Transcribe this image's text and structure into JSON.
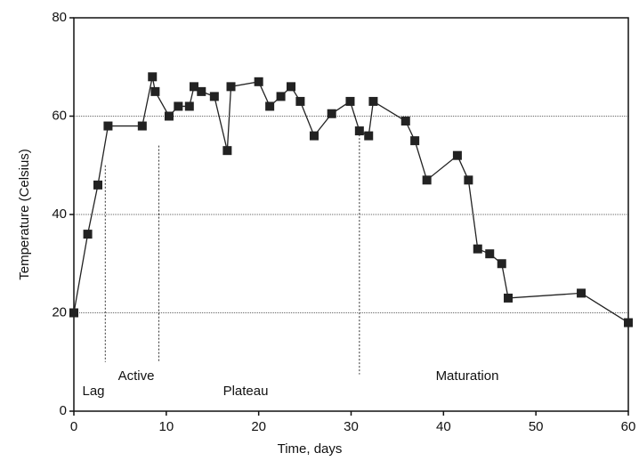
{
  "chart_data": {
    "type": "line",
    "x_label": "Time, days",
    "y_label": "Temperature (Celsius)",
    "x": [
      0,
      1.5,
      2.6,
      3.7,
      7.4,
      8.5,
      8.8,
      10.3,
      11.3,
      12.5,
      13,
      13.8,
      15.2,
      16.6,
      17,
      20,
      21.2,
      22.4,
      23.5,
      24.5,
      26,
      27.9,
      29.9,
      30.9,
      31.9,
      32.4,
      35.9,
      36.9,
      38.2,
      41.5,
      42.7,
      43.7,
      45,
      46.3,
      47,
      54.9,
      60
    ],
    "series": [
      {
        "color": "#222222",
        "values": [
          20,
          36,
          46,
          58,
          58,
          68,
          65,
          60,
          62,
          62,
          66,
          65,
          64,
          53,
          66,
          67,
          62,
          64,
          66,
          63,
          56,
          60.5,
          63,
          57,
          56,
          63,
          59,
          55,
          47,
          52,
          47,
          33,
          32,
          30,
          23,
          24,
          18
        ]
      }
    ],
    "xlim": [
      0,
      60
    ],
    "xticks": [
      0,
      10,
      20,
      30,
      40,
      50,
      60
    ],
    "ylim": [
      0,
      80
    ],
    "yticks": [
      0,
      20,
      40,
      60,
      80
    ],
    "grid": true,
    "phase_boundaries": [
      3.4,
      9.2,
      30.9
    ],
    "annotations": [
      "Lag",
      "Active",
      "Plateau",
      "Maturation"
    ]
  }
}
